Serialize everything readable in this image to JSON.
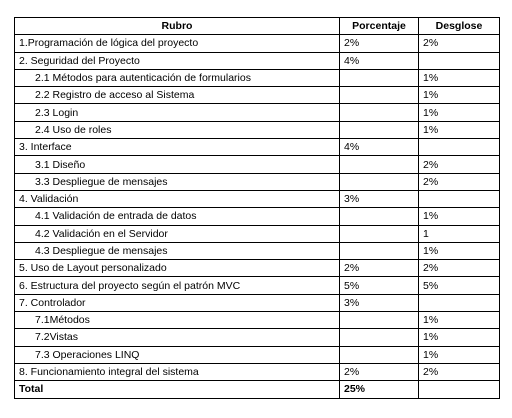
{
  "table": {
    "header": [
      "Rubro",
      "Porcentaje",
      "Desglose"
    ],
    "rows": [
      {
        "rubro": "1.Programación de lógica del proyecto",
        "porcentaje": "2%",
        "desglose": "2%"
      },
      {
        "rubro": "2. Seguridad del Proyecto",
        "porcentaje": "4%"
      },
      {
        "rubro": "2.1 Métodos para autenticación de formularios",
        "desglose": "1%"
      },
      {
        "rubro": "2.2 Registro de acceso al Sistema",
        "desglose": "1%"
      },
      {
        "rubro": "2.3 Login",
        "desglose": "1%"
      },
      {
        "rubro": "2.4 Uso de roles",
        "desglose": "1%"
      },
      {
        "rubro": "3.  Interface",
        "porcentaje": "4%"
      },
      {
        "rubro": "3.1 Diseño",
        "desglose": "2%"
      },
      {
        "rubro": "3.3 Despliegue de mensajes",
        "desglose": "2%"
      },
      {
        "rubro": "4. Validación",
        "porcentaje": "3%"
      },
      {
        "rubro": "4.1 Validación de entrada de datos",
        "desglose": "1%"
      },
      {
        "rubro": "4.2 Validación en el Servidor",
        "desglose": "1"
      },
      {
        "rubro": "4.3 Despliegue de mensajes",
        "desglose": "1%"
      },
      {
        "rubro": "5. Uso de Layout personalizado",
        "porcentaje": "2%",
        "desglose": "2%"
      },
      {
        "rubro": "6. Estructura del proyecto según el patrón MVC",
        "porcentaje": "5%",
        "desglose": "5%"
      },
      {
        "rubro": "7. Controlador",
        "porcentaje": "3%"
      },
      {
        "rubro": "7.1Métodos",
        "desglose": "1%"
      },
      {
        "rubro": "7.2Vistas",
        "desglose": "1%"
      },
      {
        "rubro": "7.3 Operaciones LINQ",
        "desglose": "1%"
      },
      {
        "rubro": "8. Funcionamiento integral del sistema",
        "porcentaje": "2%",
        "desglose": "2%"
      }
    ],
    "total": {
      "rubro": "Total",
      "porcentaje": "25%"
    }
  }
}
